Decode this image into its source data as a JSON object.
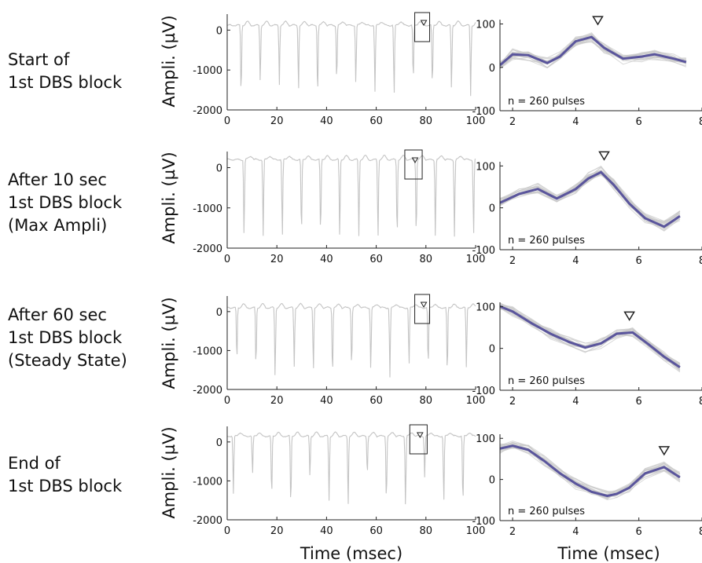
{
  "rows": [
    {
      "label_lines": [
        "Start of",
        "1st DBS block"
      ]
    },
    {
      "label_lines": [
        "After 10 sec",
        "1st DBS block",
        "(Max Ampli)"
      ]
    },
    {
      "label_lines": [
        "After 60 sec",
        "1st DBS block",
        "(Steady State)"
      ]
    },
    {
      "label_lines": [
        "End of",
        "1st DBS block"
      ]
    }
  ],
  "colors": {
    "trace": "#c4c4c4",
    "mean": "#5a559c",
    "overlay": "#c9c9c9",
    "axis": "#222222"
  },
  "chart_data": [
    {
      "type": "line",
      "panel": "train",
      "row": 0,
      "ylabel": "Ampli. (µV)",
      "xlabel": "",
      "xlim": [
        0,
        100
      ],
      "ylim": [
        -2000,
        400
      ],
      "xticks": [
        0,
        20,
        40,
        60,
        80,
        100
      ],
      "yticks": [
        0,
        -1000,
        -2000
      ],
      "first_spike_ms": 5.6,
      "period_ms": 7.7,
      "spike_minima": [
        -1650,
        -1300,
        -1350,
        -1500,
        -1650,
        -1300,
        -1350,
        -1550,
        -1650,
        -1300,
        -1450,
        -1500,
        -1650
      ],
      "baseline": 120,
      "marker_box_x": [
        75.5,
        81.5
      ]
    },
    {
      "type": "line",
      "panel": "pulse",
      "row": 0,
      "xlabel": "",
      "ylabel": "",
      "xlim": [
        1.6,
        8
      ],
      "ylim": [
        -100,
        110
      ],
      "xticks": [
        2,
        4,
        6,
        8
      ],
      "yticks": [
        100,
        0,
        -100
      ],
      "annotation": "n = 260 pulses",
      "marker_x": 4.7,
      "series": [
        {
          "x": [
            1.6,
            2.0,
            2.5,
            3.1,
            3.5,
            4.0,
            4.5,
            4.9,
            5.5,
            6.1,
            6.5,
            7.1,
            7.5
          ],
          "values": [
            5,
            30,
            28,
            10,
            25,
            60,
            70,
            45,
            20,
            25,
            30,
            20,
            12
          ]
        }
      ]
    },
    {
      "type": "line",
      "panel": "train",
      "row": 1,
      "ylabel": "Ampli. (µV)",
      "xlabel": "",
      "xlim": [
        0,
        100
      ],
      "ylim": [
        -2000,
        400
      ],
      "xticks": [
        0,
        20,
        40,
        60,
        80,
        100
      ],
      "yticks": [
        0,
        -1000,
        -2000
      ],
      "first_spike_ms": 6.8,
      "period_ms": 7.7,
      "spike_minima": [
        -1700,
        -1700,
        -1750,
        -1700,
        -1700,
        -1750,
        -1700,
        -1750,
        -1750,
        -1700,
        -1750,
        -1700,
        -1700
      ],
      "baseline": 200,
      "marker_box_x": [
        71.5,
        78.5
      ]
    },
    {
      "type": "line",
      "panel": "pulse",
      "row": 1,
      "xlabel": "",
      "ylabel": "",
      "xlim": [
        1.6,
        8
      ],
      "ylim": [
        -100,
        110
      ],
      "xticks": [
        2,
        4,
        6,
        8
      ],
      "yticks": [
        100,
        0,
        -100
      ],
      "annotation": "n = 260 pulses",
      "marker_x": 4.9,
      "series": [
        {
          "x": [
            1.6,
            2.2,
            2.8,
            3.4,
            4.0,
            4.4,
            4.8,
            5.2,
            5.7,
            6.2,
            6.8,
            7.3
          ],
          "values": [
            12,
            33,
            45,
            22,
            45,
            70,
            85,
            55,
            10,
            -25,
            -45,
            -20
          ]
        }
      ]
    },
    {
      "type": "line",
      "panel": "train",
      "row": 2,
      "ylabel": "Ampli. (µV)",
      "xlabel": "",
      "xlim": [
        0,
        100
      ],
      "ylim": [
        -2000,
        400
      ],
      "xticks": [
        0,
        20,
        40,
        60,
        80,
        100
      ],
      "yticks": [
        0,
        -1000,
        -2000
      ],
      "first_spike_ms": 3.9,
      "period_ms": 7.7,
      "spike_minima": [
        -1300,
        -1450,
        -1700,
        -1400,
        -1500,
        -1650,
        -1450,
        -1500,
        -1700,
        -1400,
        -1450,
        -1650,
        -1500
      ],
      "baseline": 100,
      "marker_box_x": [
        75.5,
        81.5
      ]
    },
    {
      "type": "line",
      "panel": "pulse",
      "row": 2,
      "xlabel": "",
      "ylabel": "",
      "xlim": [
        1.6,
        8
      ],
      "ylim": [
        -100,
        110
      ],
      "xticks": [
        2,
        4,
        6,
        8
      ],
      "yticks": [
        100,
        0,
        -100
      ],
      "annotation": "n = 260 pulses",
      "marker_x": 5.7,
      "series": [
        {
          "x": [
            1.6,
            2.0,
            2.6,
            3.2,
            3.8,
            4.3,
            4.8,
            5.3,
            5.8,
            6.3,
            6.8,
            7.3
          ],
          "values": [
            100,
            88,
            60,
            35,
            15,
            2,
            12,
            35,
            38,
            10,
            -20,
            -45
          ]
        }
      ]
    },
    {
      "type": "line",
      "panel": "train",
      "row": 3,
      "ylabel": "Ampli. (µV)",
      "xlabel": "Time (msec)",
      "xlim": [
        0,
        100
      ],
      "ylim": [
        -2000,
        400
      ],
      "xticks": [
        0,
        20,
        40,
        60,
        80,
        100
      ],
      "yticks": [
        0,
        -1000,
        -2000
      ],
      "first_spike_ms": 2.5,
      "period_ms": 7.7,
      "spike_minima": [
        -1350,
        -850,
        -1450,
        -1700,
        -900,
        -1500,
        -1650,
        -850,
        -1550,
        -1650,
        -900,
        -1550,
        -1650
      ],
      "baseline": 150,
      "marker_box_x": [
        73.5,
        80.5
      ]
    },
    {
      "type": "line",
      "panel": "pulse",
      "row": 3,
      "xlabel": "Time (msec)",
      "ylabel": "",
      "xlim": [
        1.6,
        8
      ],
      "ylim": [
        -100,
        110
      ],
      "xticks": [
        2,
        4,
        6,
        8
      ],
      "yticks": [
        100,
        0,
        -100
      ],
      "annotation": "n = 260 pulses",
      "marker_x": 6.8,
      "series": [
        {
          "x": [
            1.6,
            2.0,
            2.5,
            3.0,
            3.5,
            4.0,
            4.5,
            5.0,
            5.3,
            5.7,
            6.2,
            6.8,
            7.3
          ],
          "values": [
            75,
            82,
            72,
            45,
            15,
            -10,
            -30,
            -40,
            -35,
            -20,
            15,
            30,
            5
          ]
        }
      ]
    }
  ]
}
